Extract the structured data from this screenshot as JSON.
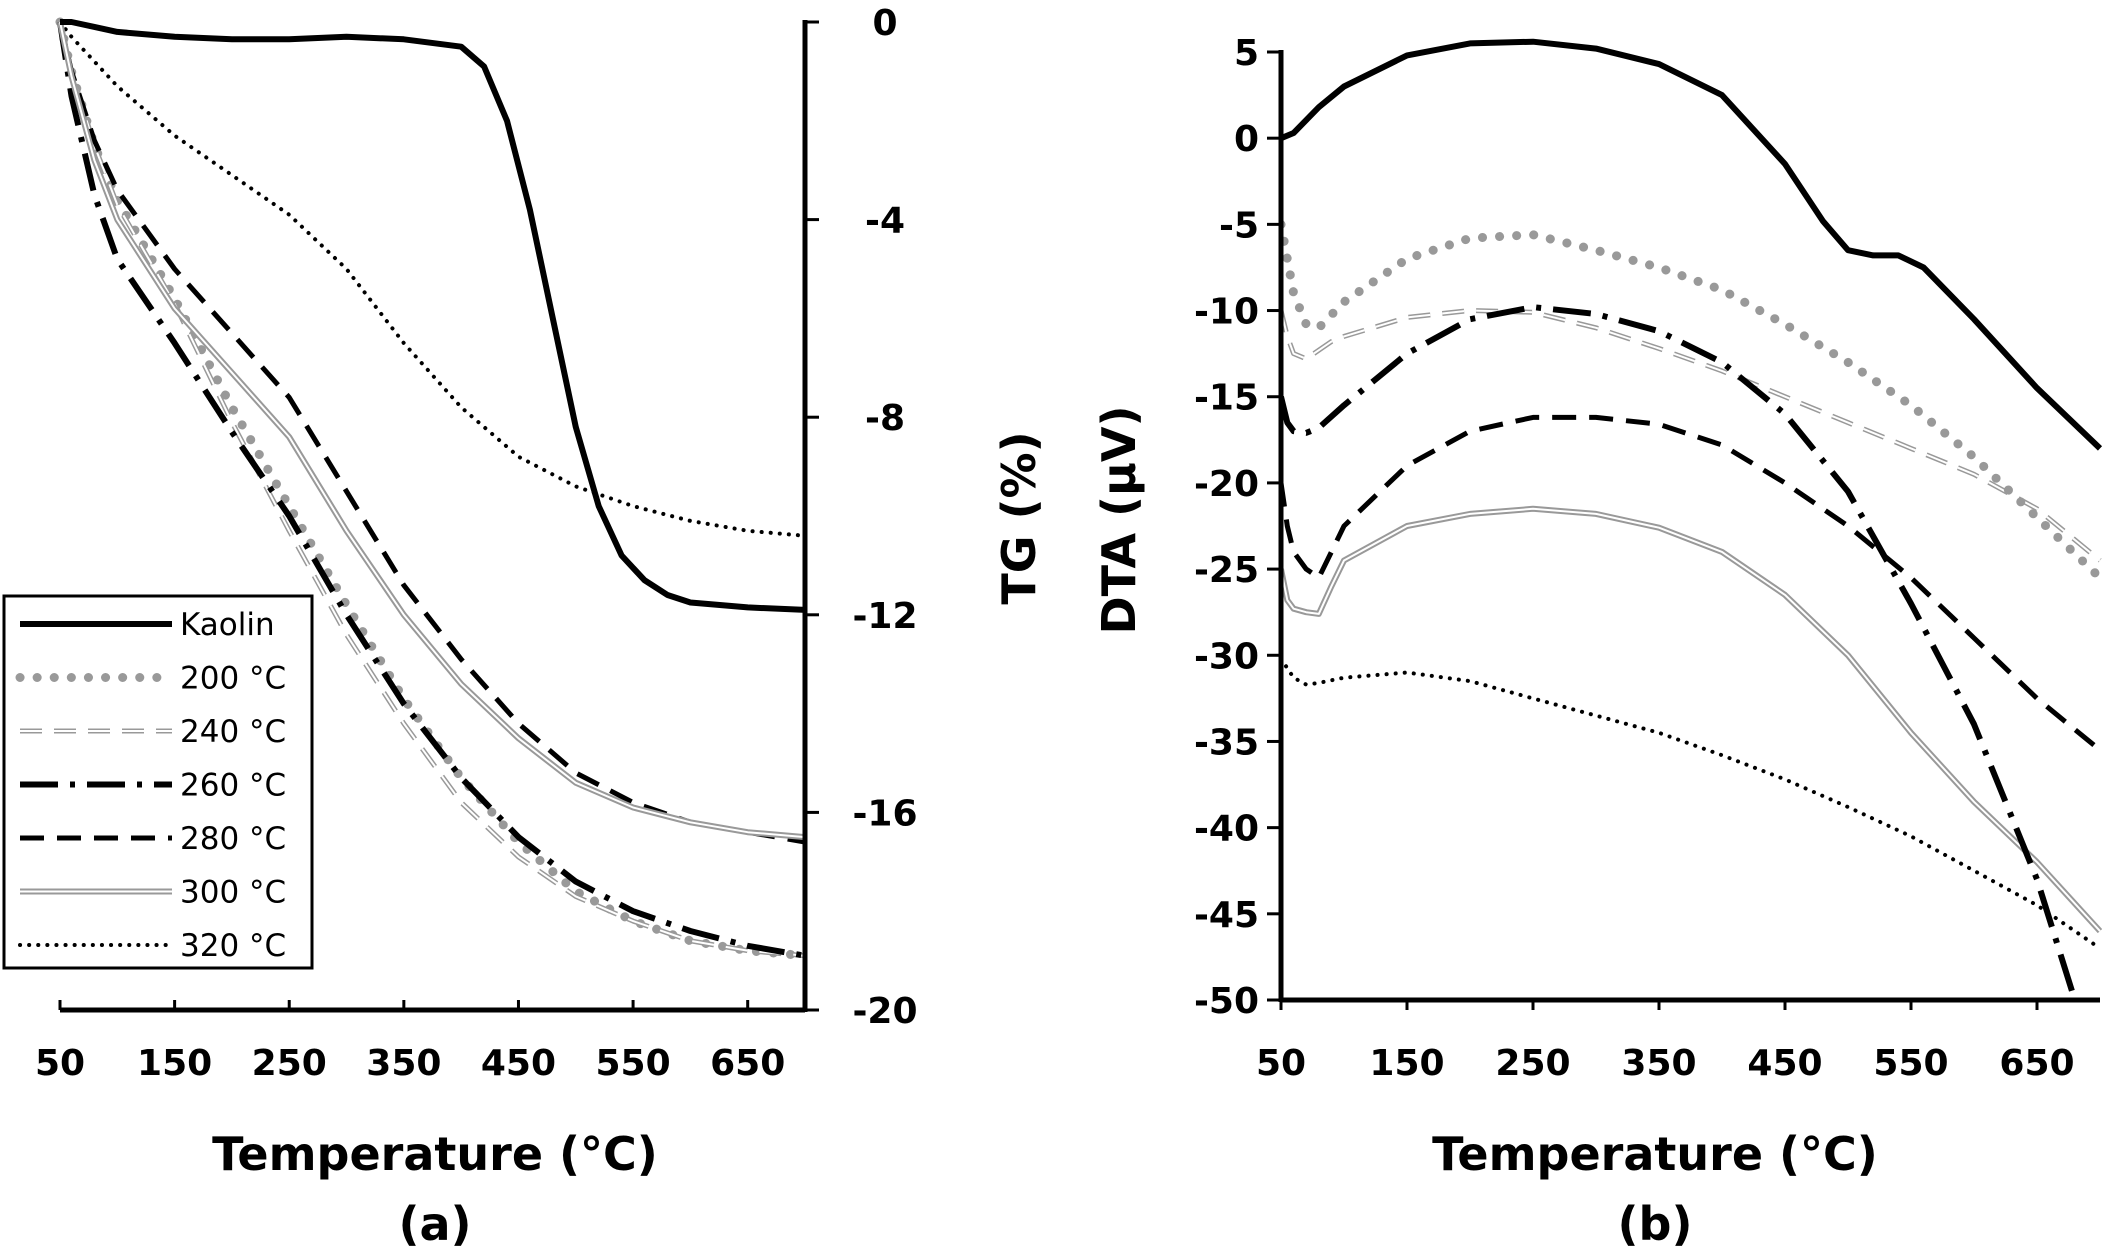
{
  "chart_data": [
    {
      "type": "line",
      "panel_label": "(a)",
      "xlabel": "Temperature (°C)",
      "ylabel": "TG (%)",
      "xlim": [
        50,
        700
      ],
      "ylim": [
        -20,
        0
      ],
      "x_ticks": [
        "50",
        "150",
        "250",
        "350",
        "450",
        "550",
        "650"
      ],
      "y_ticks": [
        "0",
        "-4",
        "-8",
        "-12",
        "-16",
        "-20"
      ],
      "y_axis_side": "right",
      "grid": false,
      "legend_position": "bottom-left",
      "legend": [
        "Kaolin",
        "200 °C",
        "240 °C",
        "260 °C",
        "280 °C",
        "300 °C",
        "320 °C"
      ],
      "series": [
        {
          "name": "Kaolin",
          "color": "#000000",
          "style": "solid-thick",
          "x": [
            50,
            60,
            80,
            100,
            150,
            200,
            250,
            300,
            350,
            400,
            420,
            440,
            460,
            480,
            500,
            520,
            540,
            560,
            580,
            600,
            650,
            700
          ],
          "y": [
            0,
            0,
            -0.1,
            -0.2,
            -0.3,
            -0.35,
            -0.35,
            -0.3,
            -0.35,
            -0.5,
            -0.9,
            -2.0,
            -3.8,
            -6.0,
            -8.2,
            -9.8,
            -10.8,
            -11.3,
            -11.6,
            -11.75,
            -11.85,
            -11.9
          ]
        },
        {
          "name": "200 °C",
          "color": "#999999",
          "style": "dotted-round",
          "x": [
            50,
            60,
            80,
            100,
            150,
            200,
            250,
            300,
            350,
            400,
            450,
            500,
            550,
            600,
            650,
            700
          ],
          "y": [
            0,
            -1.0,
            -2.5,
            -3.6,
            -5.6,
            -7.8,
            -9.8,
            -11.8,
            -13.7,
            -15.3,
            -16.6,
            -17.6,
            -18.2,
            -18.6,
            -18.8,
            -18.9
          ]
        },
        {
          "name": "240 °C",
          "color": "#999999",
          "style": "dashed-hollow",
          "x": [
            50,
            60,
            80,
            100,
            150,
            200,
            250,
            300,
            350,
            400,
            450,
            500,
            550,
            600,
            650,
            700
          ],
          "y": [
            0,
            -1.0,
            -2.5,
            -3.7,
            -5.7,
            -8.1,
            -10.3,
            -12.4,
            -14.2,
            -15.8,
            -16.9,
            -17.7,
            -18.2,
            -18.6,
            -18.8,
            -18.9
          ]
        },
        {
          "name": "260 °C",
          "color": "#000000",
          "style": "dash-dot",
          "x": [
            50,
            60,
            80,
            100,
            150,
            200,
            250,
            300,
            350,
            400,
            450,
            500,
            550,
            600,
            650,
            700
          ],
          "y": [
            0,
            -1.5,
            -3.5,
            -4.8,
            -6.5,
            -8.3,
            -10.0,
            -12.0,
            -13.8,
            -15.3,
            -16.5,
            -17.4,
            -18.0,
            -18.4,
            -18.7,
            -18.9
          ]
        },
        {
          "name": "280 °C",
          "color": "#000000",
          "style": "dashed",
          "x": [
            50,
            60,
            80,
            100,
            150,
            200,
            250,
            300,
            350,
            400,
            450,
            500,
            550,
            600,
            650,
            700
          ],
          "y": [
            0,
            -1.0,
            -2.4,
            -3.4,
            -5.0,
            -6.3,
            -7.6,
            -9.5,
            -11.4,
            -12.9,
            -14.2,
            -15.2,
            -15.8,
            -16.2,
            -16.4,
            -16.6
          ]
        },
        {
          "name": "300 °C",
          "color": "#999999",
          "style": "double-line",
          "x": [
            50,
            60,
            80,
            100,
            150,
            200,
            250,
            300,
            350,
            400,
            450,
            500,
            550,
            600,
            650,
            700
          ],
          "y": [
            0,
            -1.1,
            -2.8,
            -4.0,
            -5.8,
            -7.1,
            -8.4,
            -10.3,
            -12.0,
            -13.4,
            -14.5,
            -15.4,
            -15.9,
            -16.2,
            -16.4,
            -16.5
          ]
        },
        {
          "name": "320 °C",
          "color": "#000000",
          "style": "dotted",
          "x": [
            50,
            60,
            80,
            100,
            150,
            200,
            250,
            300,
            350,
            400,
            450,
            500,
            550,
            600,
            650,
            700
          ],
          "y": [
            0,
            -0.3,
            -0.8,
            -1.3,
            -2.3,
            -3.1,
            -3.9,
            -5.0,
            -6.5,
            -7.8,
            -8.8,
            -9.4,
            -9.8,
            -10.1,
            -10.3,
            -10.4
          ]
        }
      ]
    },
    {
      "type": "line",
      "panel_label": "(b)",
      "xlabel": "Temperature (°C)",
      "ylabel": "DTA (μV)",
      "xlim": [
        50,
        700
      ],
      "ylim": [
        -50,
        5
      ],
      "x_ticks": [
        "50",
        "150",
        "250",
        "350",
        "450",
        "550",
        "650"
      ],
      "y_ticks": [
        "5",
        "0",
        "-5",
        "-10",
        "-15",
        "-20",
        "-25",
        "-30",
        "-35",
        "-40",
        "-45",
        "-50"
      ],
      "y_axis_side": "left",
      "grid": false,
      "series": [
        {
          "name": "Kaolin",
          "color": "#000000",
          "style": "solid-thick",
          "x": [
            50,
            60,
            80,
            100,
            150,
            200,
            250,
            300,
            350,
            400,
            450,
            480,
            500,
            520,
            540,
            560,
            600,
            650,
            700
          ],
          "y": [
            0,
            0.3,
            1.8,
            3.0,
            4.8,
            5.5,
            5.6,
            5.2,
            4.3,
            2.5,
            -1.5,
            -4.8,
            -6.5,
            -6.8,
            -6.8,
            -7.5,
            -10.5,
            -14.5,
            -18.0
          ]
        },
        {
          "name": "200 °C",
          "color": "#999999",
          "style": "dotted-round",
          "x": [
            50,
            55,
            60,
            70,
            80,
            100,
            150,
            200,
            250,
            300,
            350,
            400,
            450,
            500,
            550,
            600,
            650,
            700
          ],
          "y": [
            -5.0,
            -7.0,
            -9.0,
            -10.8,
            -11.0,
            -9.5,
            -7.0,
            -5.8,
            -5.6,
            -6.5,
            -7.5,
            -8.8,
            -10.8,
            -13.0,
            -15.5,
            -18.5,
            -22.0,
            -25.5
          ]
        },
        {
          "name": "240 °C",
          "color": "#999999",
          "style": "dashed-hollow",
          "x": [
            50,
            55,
            60,
            70,
            80,
            90,
            100,
            150,
            200,
            250,
            300,
            350,
            400,
            450,
            500,
            550,
            600,
            650,
            700
          ],
          "y": [
            -10.0,
            -11.5,
            -12.5,
            -12.8,
            -12.3,
            -11.8,
            -11.5,
            -10.4,
            -10.0,
            -10.1,
            -11.0,
            -12.2,
            -13.5,
            -15.0,
            -16.5,
            -18.0,
            -19.5,
            -21.5,
            -24.5
          ]
        },
        {
          "name": "260 °C",
          "color": "#000000",
          "style": "dash-dot",
          "x": [
            50,
            55,
            60,
            70,
            80,
            100,
            150,
            200,
            250,
            300,
            350,
            400,
            450,
            500,
            550,
            600,
            650,
            680
          ],
          "y": [
            -15.0,
            -16.5,
            -17.0,
            -17.1,
            -16.8,
            -15.5,
            -12.5,
            -10.5,
            -9.8,
            -10.2,
            -11.2,
            -13.0,
            -16.0,
            -20.5,
            -27.0,
            -34.0,
            -43.0,
            -50.0
          ]
        },
        {
          "name": "280 °C",
          "color": "#000000",
          "style": "dashed",
          "x": [
            50,
            55,
            60,
            70,
            80,
            90,
            100,
            150,
            200,
            250,
            300,
            350,
            400,
            450,
            500,
            550,
            600,
            650,
            700
          ],
          "y": [
            -20.0,
            -22.5,
            -24.0,
            -25.0,
            -25.5,
            -24.0,
            -22.5,
            -19.0,
            -17.0,
            -16.2,
            -16.2,
            -16.6,
            -17.8,
            -20.0,
            -22.5,
            -25.5,
            -29.0,
            -32.5,
            -35.5
          ]
        },
        {
          "name": "300 °C",
          "color": "#999999",
          "style": "double-line",
          "x": [
            50,
            55,
            60,
            70,
            80,
            90,
            100,
            150,
            200,
            250,
            300,
            350,
            400,
            450,
            500,
            550,
            600,
            650,
            700
          ],
          "y": [
            -25.0,
            -26.8,
            -27.3,
            -27.5,
            -27.6,
            -26.0,
            -24.5,
            -22.5,
            -21.8,
            -21.5,
            -21.8,
            -22.6,
            -24.0,
            -26.5,
            -30.0,
            -34.5,
            -38.5,
            -42.0,
            -46.0
          ]
        },
        {
          "name": "320 °C",
          "color": "#000000",
          "style": "dotted",
          "x": [
            50,
            60,
            70,
            80,
            100,
            150,
            200,
            250,
            300,
            350,
            400,
            450,
            500,
            550,
            600,
            650,
            700
          ],
          "y": [
            -30.2,
            -31.3,
            -31.7,
            -31.6,
            -31.3,
            -31.0,
            -31.5,
            -32.5,
            -33.5,
            -34.5,
            -35.8,
            -37.2,
            -38.8,
            -40.5,
            -42.5,
            -44.5,
            -47.0
          ]
        }
      ]
    }
  ]
}
